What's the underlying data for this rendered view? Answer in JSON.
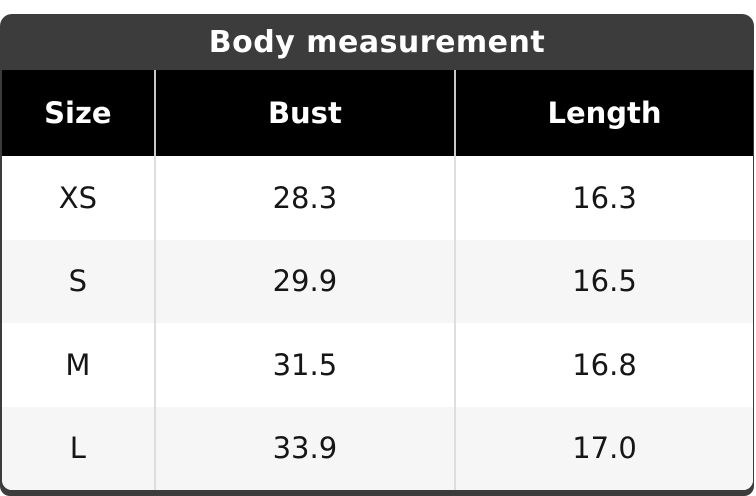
{
  "chart_data": {
    "type": "table",
    "title": "Body measurement",
    "columns": [
      "Size",
      "Bust",
      "Length"
    ],
    "rows": [
      [
        "XS",
        "28.3",
        "16.3"
      ],
      [
        "S",
        "29.9",
        "16.5"
      ],
      [
        "M",
        "31.5",
        "16.8"
      ],
      [
        "L",
        "33.9",
        "17.0"
      ]
    ]
  },
  "colors": {
    "title_bar_bg": "#3c3c3c",
    "title_text": "#ffffff",
    "header_row_bg": "#000000",
    "header_text": "#ffffff",
    "row_bg": "#ffffff",
    "row_alt_bg": "#f6f6f7",
    "cell_text": "#161616",
    "column_separator": "#dedede",
    "page_bg": "#ffffff"
  }
}
